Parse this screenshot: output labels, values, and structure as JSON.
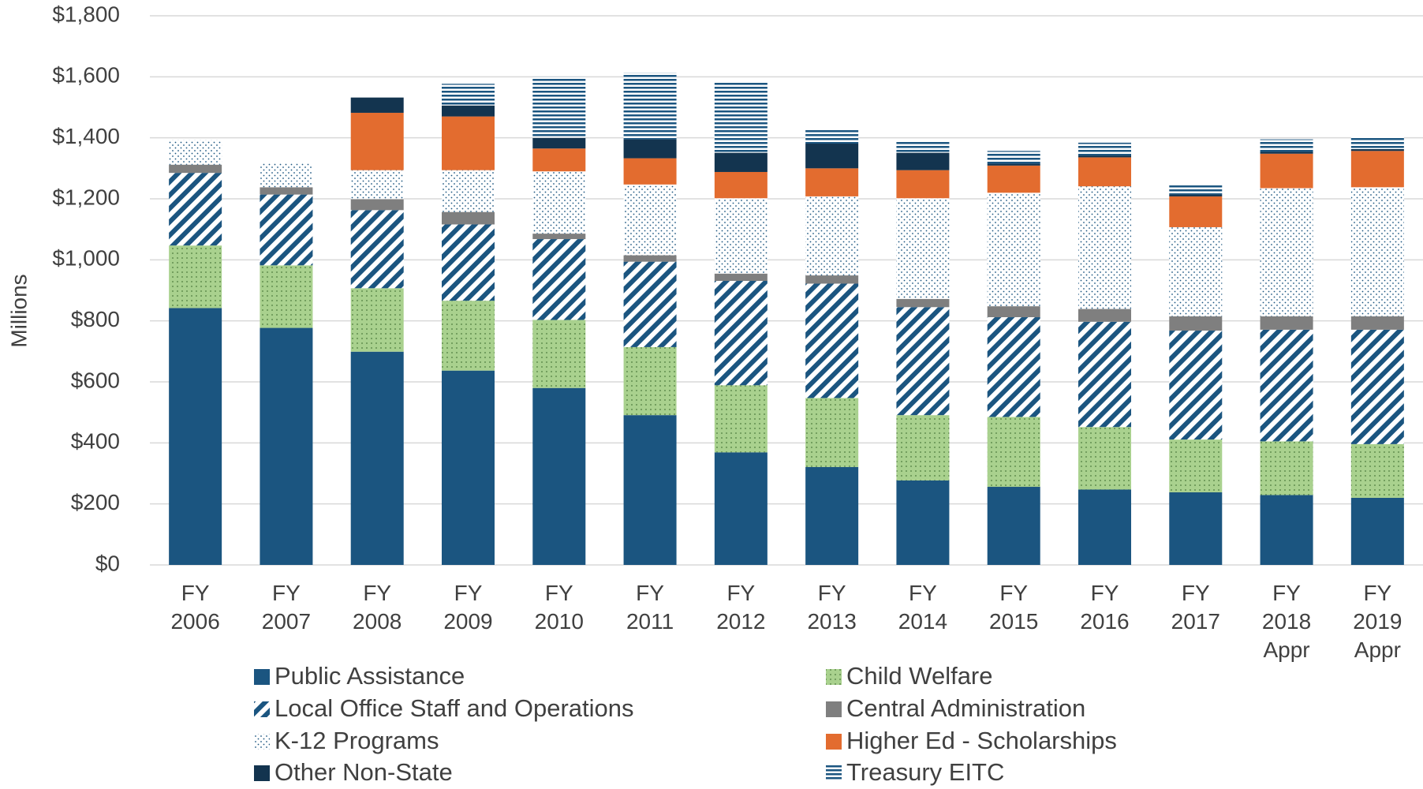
{
  "chart_data": {
    "type": "stacked_bar",
    "y_label": "Millions",
    "categories": [
      "FY 2006",
      "FY 2007",
      "FY 2008",
      "FY 2009",
      "FY 2010",
      "FY 2011",
      "FY 2012",
      "FY 2013",
      "FY 2014",
      "FY 2015",
      "FY 2016",
      "FY 2017",
      "FY 2018 Appr",
      "FY 2019 Appr"
    ],
    "series": [
      {
        "name": "Public Assistance",
        "color": "#1b5580",
        "pattern": "solid",
        "values": [
          842,
          777,
          699,
          637,
          580,
          491,
          369,
          321,
          277,
          256,
          247,
          238,
          229,
          220
        ]
      },
      {
        "name": "Child Welfare",
        "color": "#a9d18e",
        "pattern": "dots",
        "values": [
          205,
          205,
          208,
          229,
          223,
          223,
          220,
          226,
          214,
          229,
          205,
          173,
          176,
          176
        ]
      },
      {
        "name": "Local Office Staff and Operations",
        "color": "#1b5580",
        "pattern": "diagonal",
        "values": [
          238,
          232,
          256,
          250,
          265,
          280,
          342,
          375,
          354,
          327,
          345,
          357,
          366,
          375
        ]
      },
      {
        "name": "Central Administration",
        "color": "#7f7f7f",
        "pattern": "solid",
        "values": [
          27,
          24,
          36,
          41,
          18,
          21,
          24,
          27,
          27,
          36,
          42,
          47,
          44,
          44
        ]
      },
      {
        "name": "K-12 Programs",
        "color": "#1b5580",
        "pattern": "sparse-dots",
        "values": [
          80,
          80,
          95,
          137,
          204,
          232,
          247,
          259,
          330,
          372,
          402,
          292,
          420,
          423
        ]
      },
      {
        "name": "Higher Ed - Scholarships",
        "color": "#e36c2f",
        "pattern": "solid",
        "values": [
          0,
          0,
          188,
          176,
          75,
          86,
          86,
          92,
          92,
          89,
          95,
          101,
          113,
          119
        ]
      },
      {
        "name": "Other Non-State",
        "color": "#13344f",
        "pattern": "solid",
        "values": [
          0,
          0,
          50,
          36,
          35,
          62,
          63,
          81,
          57,
          6,
          6,
          6,
          6,
          6
        ]
      },
      {
        "name": "Treasury EITC",
        "color": "#1b5580",
        "pattern": "horizontal",
        "values": [
          0,
          0,
          0,
          71,
          200,
          218,
          235,
          50,
          41,
          42,
          42,
          36,
          41,
          41
        ]
      }
    ],
    "ylim": [
      0,
      1800
    ],
    "yticks": [
      {
        "value": 0,
        "label": "$0"
      },
      {
        "value": 200,
        "label": "$200"
      },
      {
        "value": 400,
        "label": "$400"
      },
      {
        "value": 600,
        "label": "$600"
      },
      {
        "value": 800,
        "label": "$800"
      },
      {
        "value": 1000,
        "label": "$1,000"
      },
      {
        "value": 1200,
        "label": "$1,200"
      },
      {
        "value": 1400,
        "label": "$1,400"
      },
      {
        "value": 1600,
        "label": "$1,600"
      },
      {
        "value": 1800,
        "label": "$1,800"
      }
    ],
    "grid": true,
    "legend": "bottom"
  }
}
